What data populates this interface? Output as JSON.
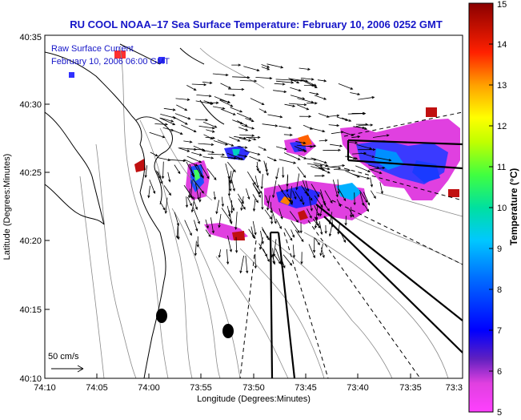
{
  "title": "RU COOL  NOAA–17  Sea Surface Temperature:  February 10, 2006 0252 GMT",
  "legend": {
    "line1": "Raw Surface Current",
    "line2": "February 10, 2006 06:00 GMT"
  },
  "scale_bar": {
    "label": "50 cm/s"
  },
  "axes": {
    "xlabel": "Longitude (Degrees:Minutes)",
    "ylabel": "Latitude (Degrees:Minutes)",
    "xticks": [
      "74:10",
      "74:05",
      "74:00",
      "73:55",
      "73:50",
      "73:45",
      "73:40",
      "73:35",
      "73:3"
    ],
    "yticks": [
      "40:35",
      "40:30",
      "40:25",
      "40:20",
      "40:15",
      "40:10"
    ]
  },
  "colorbar": {
    "label": "Temperature (°C)",
    "ticks": [
      "15",
      "14",
      "13",
      "12",
      "11",
      "10",
      "9",
      "8",
      "7",
      "6",
      "5"
    ],
    "range": [
      5,
      15
    ]
  },
  "colors": {
    "title": "#1515c8",
    "coast": "#000000",
    "bathymetry": "#8a8a8a"
  }
}
